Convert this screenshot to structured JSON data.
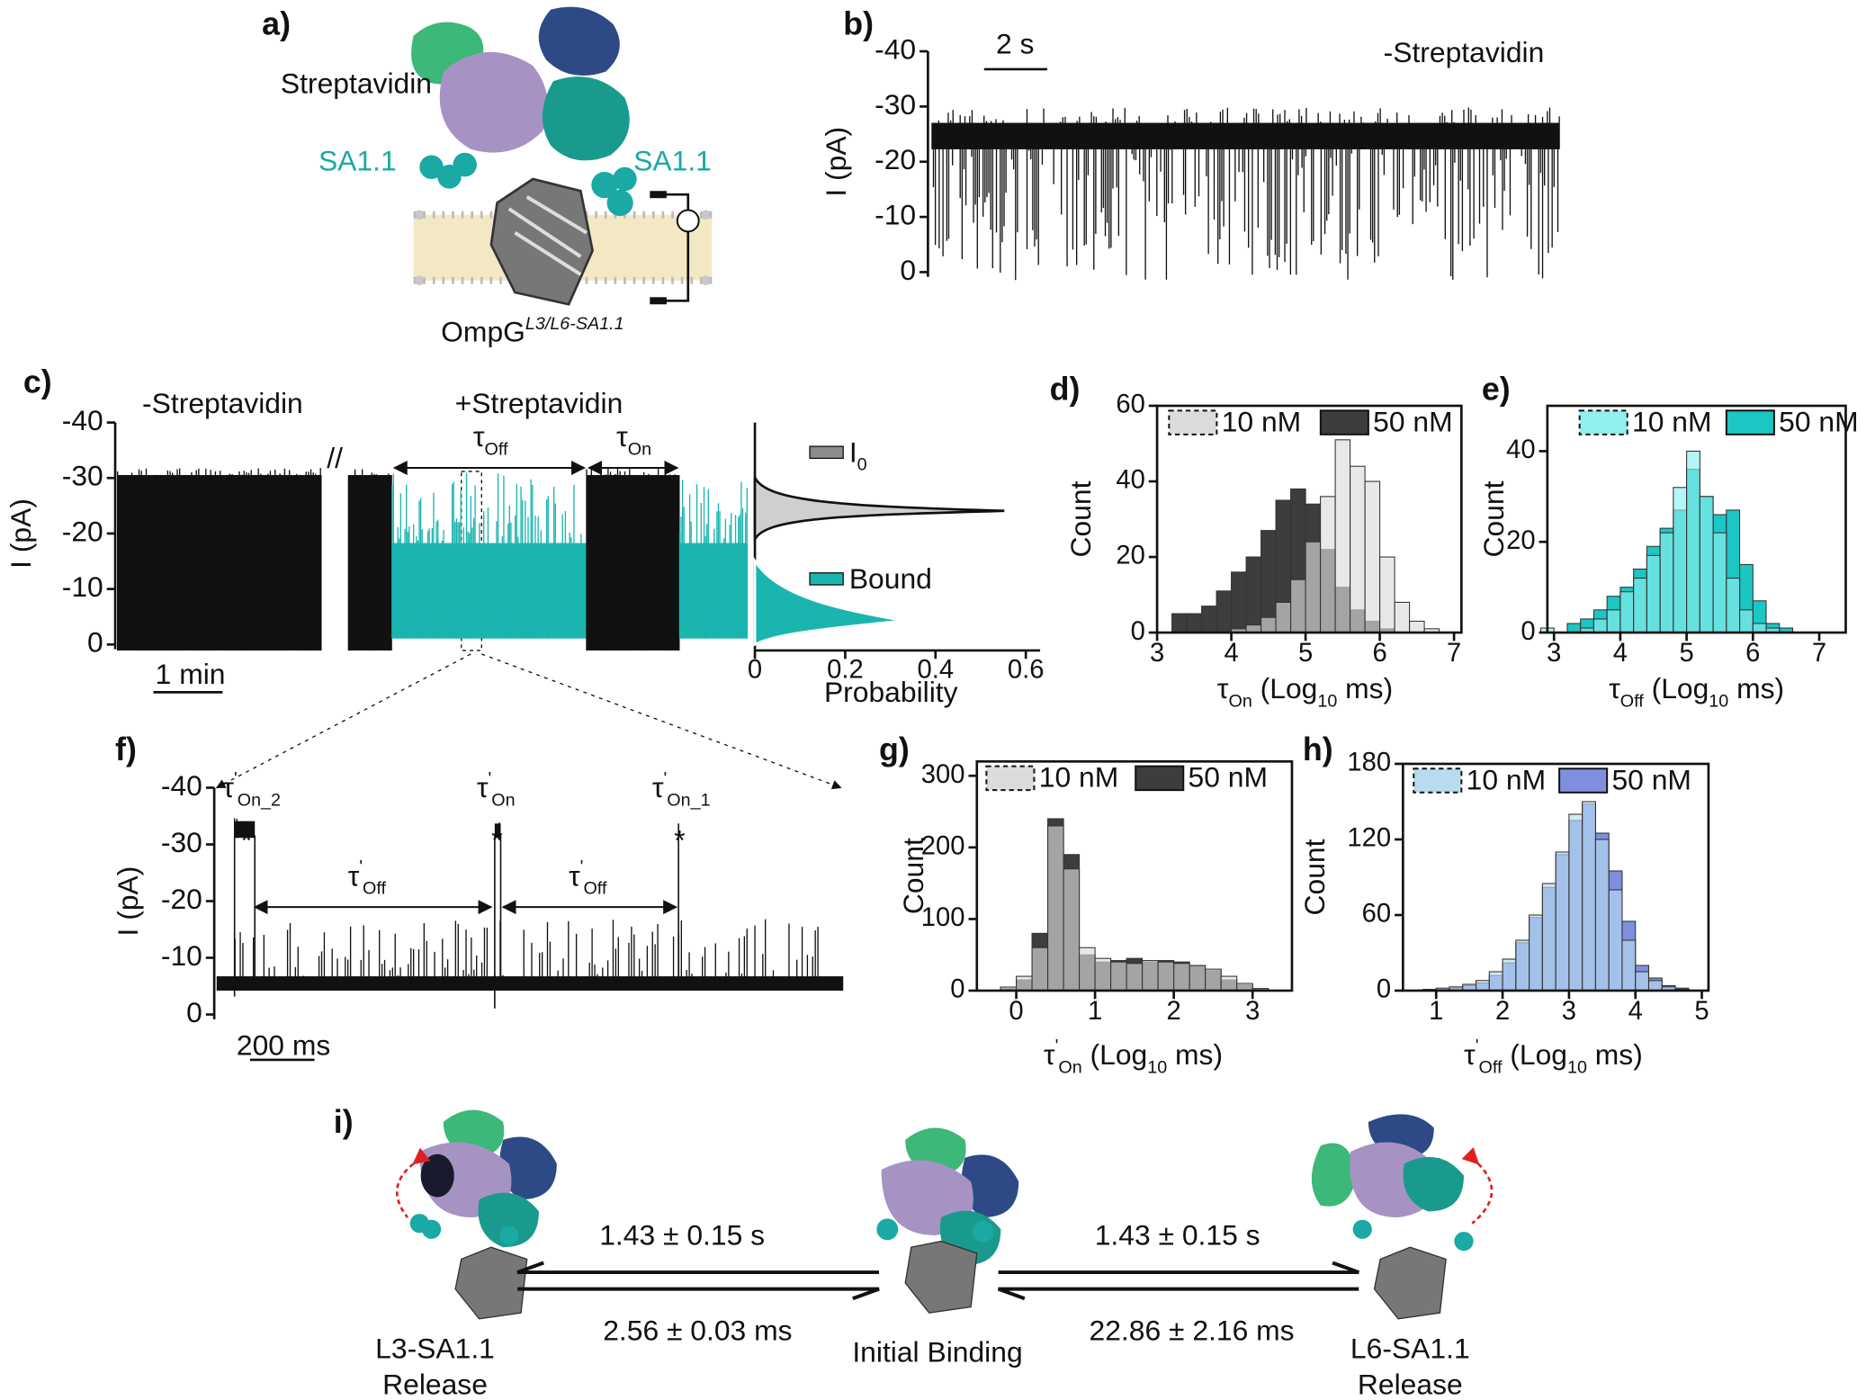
{
  "panel_labels": [
    "a)",
    "b)",
    "c)",
    "d)",
    "e)",
    "f)",
    "g)",
    "h)",
    "i)"
  ],
  "illustration": {
    "protein": "Streptavidin",
    "ligand_left": "SA1.1",
    "ligand_right": "SA1.1",
    "pore": "OmpG",
    "pore_variant": "L3/L6-SA1.1"
  },
  "chart_data": [
    {
      "type": "trace",
      "ylabel": "I (pA)",
      "ylim": [
        0,
        -40
      ],
      "yticks": [
        0,
        -10,
        -20,
        -30,
        -40
      ],
      "scale_bar": "2 s",
      "annotations": [
        "-Streptavidin"
      ]
    },
    {
      "type": "trace",
      "ylabel": "I (pA)",
      "ylim": [
        0,
        -40
      ],
      "yticks": [
        0,
        -10,
        -20,
        -30,
        -40
      ],
      "scale_bar": "1 min",
      "annotations": [
        "-Streptavidin",
        "+Streptavidin"
      ],
      "intervals": [
        [
          "τ",
          "Off"
        ],
        [
          "τ",
          "On"
        ]
      ],
      "break_mark": "//"
    },
    {
      "type": "density",
      "xlabel": "Probability",
      "xlim": [
        0,
        0.6
      ],
      "xticks": [
        0,
        0.2,
        0.4,
        0.6
      ],
      "series": [
        {
          "name": [
            "I",
            "0"
          ],
          "color": "#8c8c8c"
        },
        {
          "name": "Bound",
          "color": "#1bb5b0"
        }
      ]
    },
    {
      "type": "histogram",
      "ylabel": "Count",
      "xlabel": [
        "τ",
        "On",
        " (Log",
        "10",
        " ms)"
      ],
      "xlim": [
        3,
        7.1
      ],
      "xticks": [
        3,
        4,
        5,
        6,
        7
      ],
      "ylim": [
        0,
        60
      ],
      "yticks": [
        0,
        20,
        40,
        60
      ],
      "bins": [
        3.2,
        3.4,
        3.6,
        3.8,
        4,
        4.2,
        4.4,
        4.6,
        4.8,
        5,
        5.2,
        5.4,
        5.6,
        5.8,
        6,
        6.2,
        6.4,
        6.6,
        6.8
      ],
      "series": [
        {
          "name": "10 nM",
          "color": "#dcdcdc",
          "values": [
            0,
            0,
            0,
            0,
            1,
            2,
            4,
            8,
            14,
            24,
            36,
            51,
            44,
            40,
            20,
            8,
            3,
            1
          ]
        },
        {
          "name": "50 nM",
          "color": "#3d3d3d",
          "values": [
            5,
            5,
            7,
            11,
            16,
            20,
            27,
            35,
            38,
            34,
            22,
            12,
            6,
            3,
            1,
            0,
            0,
            0
          ]
        }
      ]
    },
    {
      "type": "histogram",
      "ylabel": "Count",
      "xlabel": [
        "τ",
        "Off",
        " (Log",
        "10",
        " ms)"
      ],
      "xlim": [
        2.9,
        7.4
      ],
      "xticks": [
        3,
        4,
        5,
        6,
        7
      ],
      "ylim": [
        0,
        50
      ],
      "yticks": [
        0,
        20,
        40
      ],
      "bins": [
        2.8,
        3,
        3.2,
        3.4,
        3.6,
        3.8,
        4,
        4.2,
        4.4,
        4.6,
        4.8,
        5,
        5.2,
        5.4,
        5.6,
        5.8,
        6,
        6.2,
        6.4,
        6.6
      ],
      "series": [
        {
          "name": "10 nM",
          "color": "#8ff0ee",
          "values": [
            1,
            0,
            0,
            1,
            3,
            5,
            9,
            12,
            17,
            22,
            32,
            40,
            30,
            22,
            12,
            5,
            2,
            1,
            0
          ]
        },
        {
          "name": "50 nM",
          "color": "#1cc6c2",
          "values": [
            0,
            0,
            2,
            3,
            5,
            8,
            10,
            14,
            19,
            23,
            27,
            36,
            30,
            26,
            27,
            15,
            7,
            2,
            1
          ]
        }
      ]
    },
    {
      "type": "trace",
      "ylabel": "I (pA)",
      "ylim": [
        0,
        -40
      ],
      "yticks": [
        0,
        -10,
        -20,
        -30,
        -40
      ],
      "scale_bar": "200 ms",
      "events": [
        [
          "τ",
          "'",
          "On_2"
        ],
        [
          "τ",
          "'",
          "On"
        ],
        [
          "τ",
          "'",
          "On_1"
        ]
      ],
      "event_markers": [
        "*",
        "*",
        "*"
      ],
      "intervals": [
        [
          "τ",
          "'",
          "Off"
        ],
        [
          "τ",
          "'",
          "Off"
        ]
      ]
    },
    {
      "type": "histogram",
      "ylabel": "Count",
      "xlabel": [
        "τ",
        "'",
        "On",
        " (Log",
        "10",
        " ms)"
      ],
      "xlim": [
        -0.5,
        3.5
      ],
      "xticks": [
        0,
        1,
        2,
        3
      ],
      "ylim": [
        0,
        320
      ],
      "yticks": [
        0,
        100,
        200,
        300
      ],
      "bins": [
        -0.2,
        0,
        0.2,
        0.4,
        0.6,
        0.8,
        1,
        1.2,
        1.4,
        1.6,
        1.8,
        2,
        2.2,
        2.4,
        2.6,
        2.8,
        3,
        3.2
      ],
      "series": [
        {
          "name": "10 nM",
          "color": "#dcdcdc",
          "values": [
            5,
            20,
            60,
            230,
            170,
            60,
            45,
            40,
            38,
            42,
            40,
            38,
            35,
            30,
            20,
            10,
            3
          ]
        },
        {
          "name": "50 nM",
          "color": "#3d3d3d",
          "values": [
            3,
            15,
            80,
            240,
            190,
            50,
            40,
            42,
            45,
            40,
            42,
            40,
            35,
            28,
            15,
            8,
            2
          ]
        }
      ]
    },
    {
      "type": "histogram",
      "ylabel": "Count",
      "xlabel": [
        "τ",
        "'",
        "Off",
        " (Log",
        "10",
        " ms)"
      ],
      "xlim": [
        0.5,
        5.1
      ],
      "xticks": [
        1,
        2,
        3,
        4,
        5
      ],
      "ylim": [
        0,
        180
      ],
      "yticks": [
        0,
        60,
        120,
        180
      ],
      "bins": [
        0.8,
        1,
        1.2,
        1.4,
        1.6,
        1.8,
        2,
        2.2,
        2.4,
        2.6,
        2.8,
        3,
        3.2,
        3.4,
        3.6,
        3.8,
        4,
        4.2,
        4.4,
        4.6,
        4.8
      ],
      "series": [
        {
          "name": "10 nM",
          "color": "#b8dcef",
          "values": [
            1,
            2,
            3,
            5,
            8,
            15,
            25,
            40,
            60,
            85,
            110,
            140,
            150,
            120,
            80,
            40,
            15,
            8,
            3,
            1
          ]
        },
        {
          "name": "50 nM",
          "color": "#7f8fe0",
          "values": [
            0,
            1,
            2,
            4,
            6,
            12,
            22,
            38,
            58,
            82,
            108,
            135,
            148,
            125,
            95,
            55,
            20,
            10,
            4,
            2
          ]
        }
      ]
    }
  ],
  "scheme": {
    "rate_left_forward": "1.43 ± 0.15 s",
    "rate_left_back": "2.56 ± 0.03 ms",
    "rate_right_forward": "1.43 ± 0.15 s",
    "rate_right_back": "22.86 ± 2.16 ms",
    "left_state": [
      "L3-SA1.1",
      "Release"
    ],
    "center_state": "Initial Binding",
    "right_state": [
      "L6-SA1.1",
      "Release"
    ]
  }
}
